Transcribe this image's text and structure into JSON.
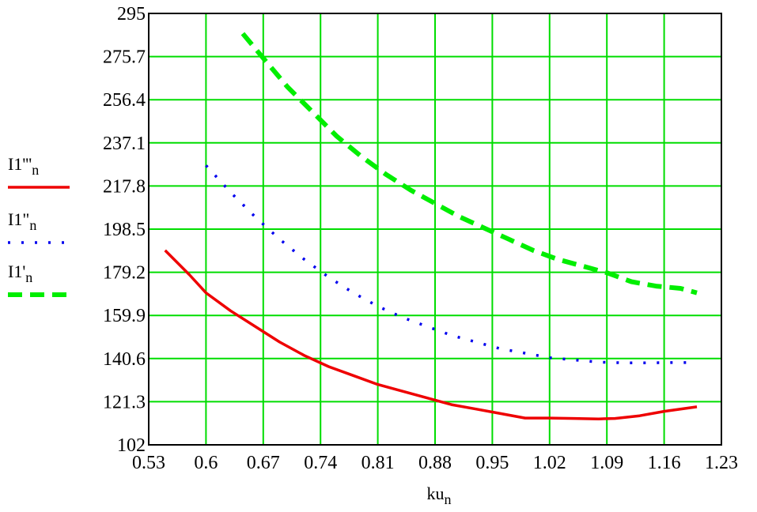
{
  "chart_data": {
    "type": "line",
    "xlabel": "ku",
    "xlabel_sub": "n",
    "xlim": [
      0.53,
      1.23
    ],
    "ylim": [
      102,
      295
    ],
    "x_ticks": [
      "0.53",
      "0.6",
      "0.67",
      "0.74",
      "0.81",
      "0.88",
      "0.95",
      "1.02",
      "1.09",
      "1.16",
      "1.23"
    ],
    "y_ticks": [
      "295",
      "275.7",
      "256.4",
      "237.1",
      "217.8",
      "198.5",
      "179.2",
      "159.9",
      "140.6",
      "121.3",
      "102"
    ],
    "grid": true,
    "grid_color": "#00dd00",
    "legend_position": "left",
    "series": [
      {
        "name": "I1'''",
        "name_sub": "n",
        "style": "solid",
        "color": "#ee0000",
        "x": [
          0.55,
          0.58,
          0.6,
          0.63,
          0.66,
          0.69,
          0.72,
          0.75,
          0.78,
          0.81,
          0.84,
          0.87,
          0.9,
          0.93,
          0.96,
          0.99,
          1.02,
          1.05,
          1.08,
          1.1,
          1.13,
          1.16,
          1.2
        ],
        "y": [
          189,
          178,
          170,
          162,
          155,
          148,
          142,
          137,
          133,
          129,
          126,
          123,
          120,
          118,
          116,
          114,
          114,
          113.8,
          113.6,
          113.8,
          115,
          117,
          119
        ]
      },
      {
        "name": "I1\"",
        "name_sub": "n",
        "style": "dotted",
        "color": "#0000ee",
        "x": [
          0.6,
          0.63,
          0.66,
          0.69,
          0.72,
          0.75,
          0.78,
          0.81,
          0.84,
          0.87,
          0.9,
          0.93,
          0.96,
          0.99,
          1.02,
          1.05,
          1.08,
          1.11,
          1.14,
          1.17,
          1.2
        ],
        "y": [
          227,
          215,
          204,
          194,
          185,
          177,
          170,
          164,
          159,
          155,
          151,
          148,
          145,
          143,
          141,
          140,
          139,
          138.7,
          138.7,
          138.8,
          138.8
        ]
      },
      {
        "name": "I1'",
        "name_sub": "n",
        "style": "dashed",
        "color": "#00ee00",
        "x": [
          0.645,
          0.67,
          0.7,
          0.73,
          0.76,
          0.79,
          0.82,
          0.85,
          0.88,
          0.91,
          0.94,
          0.97,
          1.0,
          1.03,
          1.06,
          1.09,
          1.12,
          1.15,
          1.18,
          1.2
        ],
        "y": [
          286,
          275,
          262,
          251,
          240,
          231,
          223,
          216,
          210,
          204,
          199,
          194,
          189,
          185,
          182,
          179,
          175,
          173,
          172,
          170
        ]
      }
    ]
  }
}
